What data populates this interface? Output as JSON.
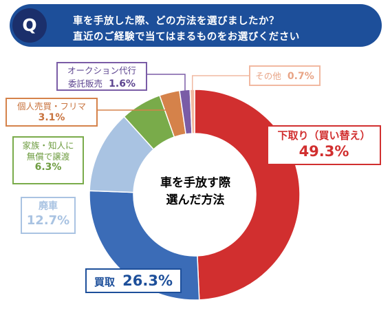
{
  "question": {
    "badge": "Q",
    "line1": "車を手放した際、どの方法を選びましたか？",
    "line2": "直近のご経験で当てはまるものをお選びください"
  },
  "center_label": {
    "line1": "車を手放す際",
    "line2": "選んだ方法"
  },
  "chart_data": {
    "type": "pie",
    "donut": true,
    "unit": "%",
    "slices": [
      {
        "name": "下取り（買い替え）",
        "value": 49.3,
        "label": "49.3%",
        "color": "#d12f2f"
      },
      {
        "name": "買取",
        "value": 26.3,
        "label": "26.3%",
        "color": "#3b6cb7"
      },
      {
        "name": "廃車",
        "value": 12.7,
        "label": "12.7%",
        "color": "#a9c3e2"
      },
      {
        "name_lines": [
          "家族・知人に",
          "無償で譲渡"
        ],
        "value": 6.3,
        "label": "6.3%",
        "color": "#79ab4a"
      },
      {
        "name": "個人売買・フリマ",
        "value": 3.1,
        "label": "3.1%",
        "color": "#d5824a"
      },
      {
        "name_lines": [
          "オークション代行",
          "委託販売"
        ],
        "value": 1.6,
        "label": "1.6%",
        "color": "#7a5ca6"
      },
      {
        "name": "その他",
        "value": 0.7,
        "label": "0.7%",
        "color": "#f1b8a0"
      }
    ]
  }
}
